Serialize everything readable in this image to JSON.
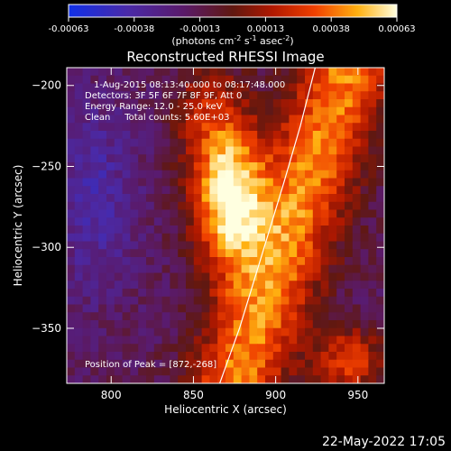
{
  "chart_data": {
    "type": "heatmap",
    "title": "Reconstructed RHESSI Image",
    "xlabel": "Heliocentric X (arcsec)",
    "ylabel": "Heliocentric Y (arcsec)",
    "xlim": [
      773,
      966
    ],
    "ylim": [
      -384,
      -189
    ],
    "xticks": [
      800,
      850,
      900,
      950
    ],
    "yticks": [
      -200,
      -250,
      -300,
      -350
    ],
    "colorbar": {
      "ticks": [
        "-0.00063",
        "-0.00038",
        "-0.00013",
        "0.00013",
        "0.00038",
        "0.00063"
      ],
      "range": [
        -0.00063,
        0.00063
      ],
      "units_prefix": "(photons cm",
      "units_sup1": "-2",
      "units_mid1": " s",
      "units_sup2": "-1",
      "units_mid2": " asec",
      "units_sup3": "-2",
      "units_suffix": ")"
    },
    "info": {
      "line1": "1-Aug-2015 08:13:40.000 to 08:17:48.000",
      "line2": "Detectors: 3F 5F 6F 7F 8F 9F, Att 0",
      "line3": "Energy Range: 12.0 - 25.0 keV",
      "line4": "Clean     Total counts: 5.60E+03"
    },
    "peak_label": "Position of Peak = [872,-268]",
    "peak": [
      872,
      -268
    ],
    "limb_curve": [
      [
        866,
        -384
      ],
      [
        878,
        -350
      ],
      [
        893,
        -300
      ],
      [
        905,
        -260
      ],
      [
        915,
        -225
      ],
      [
        924,
        -189
      ]
    ],
    "image_shape": [
      40,
      40
    ]
  },
  "footer": {
    "date": "22-May-2022 17:05"
  },
  "colors": {
    "background": "#000000",
    "axes": "#ffffff"
  }
}
